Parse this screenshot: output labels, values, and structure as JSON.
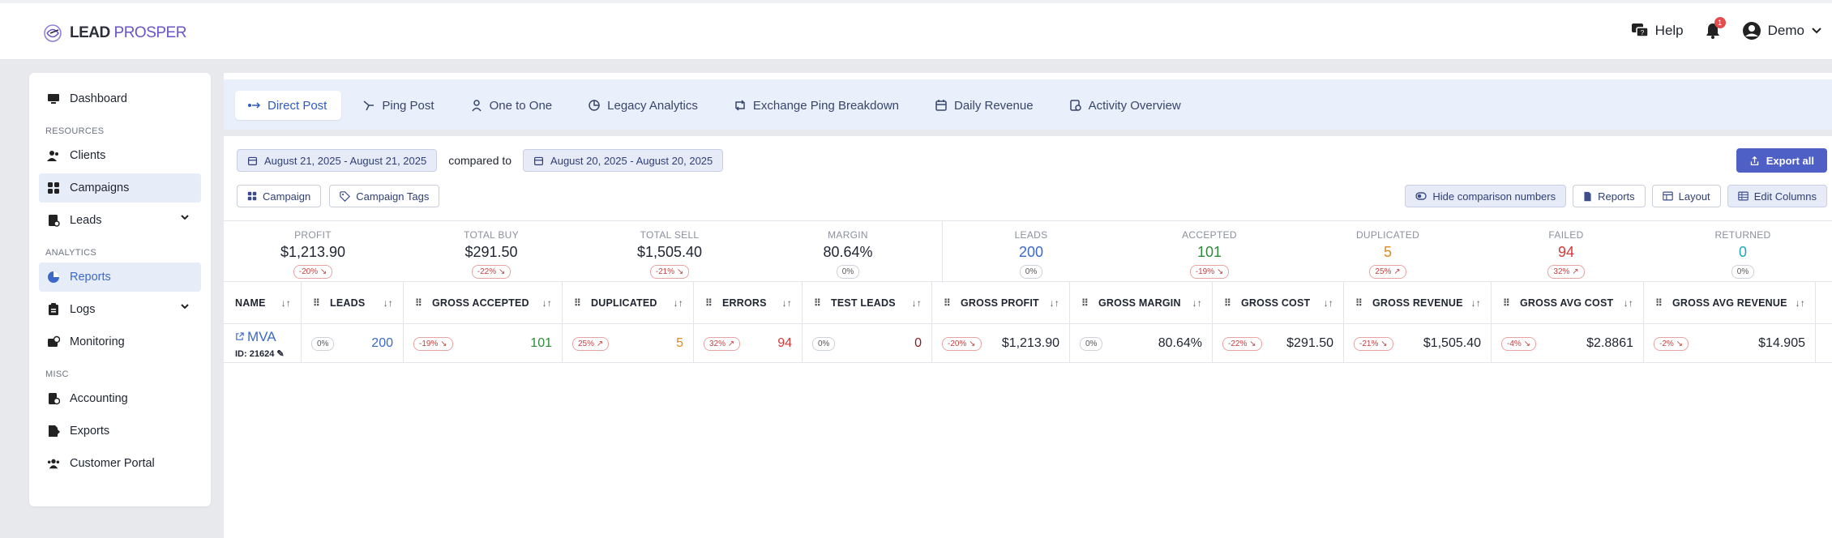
{
  "header": {
    "logo_left": "LEAD",
    "logo_right": "PROSPER",
    "help_label": "Help",
    "notification_count": "1",
    "user_label": "Demo"
  },
  "sidebar": {
    "dashboard": "Dashboard",
    "section_resources": "RESOURCES",
    "clients": "Clients",
    "campaigns": "Campaigns",
    "leads": "Leads",
    "section_analytics": "ANALYTICS",
    "reports": "Reports",
    "logs": "Logs",
    "monitoring": "Monitoring",
    "section_misc": "MISC",
    "accounting": "Accounting",
    "exports": "Exports",
    "customer_portal": "Customer Portal"
  },
  "tabs": {
    "direct_post": "Direct Post",
    "ping_post": "Ping Post",
    "one_to_one": "One to One",
    "legacy_analytics": "Legacy Analytics",
    "exchange_ping": "Exchange Ping Breakdown",
    "daily_revenue": "Daily Revenue",
    "activity_overview": "Activity Overview"
  },
  "filters": {
    "date_range": "August 21, 2025 - August 21, 2025",
    "compared_to": "compared to",
    "compare_range": "August 20, 2025 - August 20, 2025",
    "campaign": "Campaign",
    "campaign_tags": "Campaign Tags",
    "export_all": "Export all",
    "hide_comparison": "Hide comparison numbers",
    "reports": "Reports",
    "layout": "Layout",
    "edit_columns": "Edit Columns"
  },
  "summary": {
    "profit": {
      "label": "PROFIT",
      "value": "$1,213.90",
      "change": "-20%"
    },
    "total_buy": {
      "label": "TOTAL BUY",
      "value": "$291.50",
      "change": "-22%"
    },
    "total_sell": {
      "label": "TOTAL SELL",
      "value": "$1,505.40",
      "change": "-21%"
    },
    "margin": {
      "label": "MARGIN",
      "value": "80.64%",
      "change": "0%"
    },
    "leads": {
      "label": "LEADS",
      "value": "200",
      "change": "0%"
    },
    "accepted": {
      "label": "ACCEPTED",
      "value": "101",
      "change": "-19%"
    },
    "duplicated": {
      "label": "DUPLICATED",
      "value": "5",
      "change": "25%"
    },
    "failed": {
      "label": "FAILED",
      "value": "94",
      "change": "32%"
    },
    "returned": {
      "label": "RETURNED",
      "value": "0",
      "change": "0%"
    }
  },
  "table": {
    "headers": {
      "name": "NAME",
      "leads": "LEADS",
      "gross_accepted": "GROSS ACCEPTED",
      "duplicated": "DUPLICATED",
      "errors": "ERRORS",
      "test_leads": "TEST LEADS",
      "gross_profit": "GROSS PROFIT",
      "gross_margin": "GROSS MARGIN",
      "gross_cost": "GROSS COST",
      "gross_revenue": "GROSS REVENUE",
      "gross_avg_cost": "GROSS AVG COST",
      "gross_avg_revenue": "GROSS AVG REVENUE"
    },
    "row": {
      "name": "MVA",
      "id": "ID: 21624",
      "leads": {
        "change": "0%",
        "value": "200"
      },
      "gross_accepted": {
        "change": "-19%",
        "value": "101"
      },
      "duplicated": {
        "change": "25%",
        "value": "5"
      },
      "errors": {
        "change": "32%",
        "value": "94"
      },
      "test_leads": {
        "change": "0%",
        "value": "0"
      },
      "gross_profit": {
        "change": "-20%",
        "value": "$1,213.90"
      },
      "gross_margin": {
        "change": "0%",
        "value": "80.64%"
      },
      "gross_cost": {
        "change": "-22%",
        "value": "$291.50"
      },
      "gross_revenue": {
        "change": "-21%",
        "value": "$1,505.40"
      },
      "gross_avg_cost": {
        "change": "-4%",
        "value": "$2.8861"
      },
      "gross_avg_revenue": {
        "change": "-2%",
        "value": "$14.905"
      }
    }
  },
  "colors": {
    "accent": "#3c68c7",
    "positive": "#2e8b3a",
    "warning": "#e08a1e",
    "negative": "#d03a3a",
    "teal": "#1fa6b8",
    "export_button": "#4e5fc6"
  }
}
